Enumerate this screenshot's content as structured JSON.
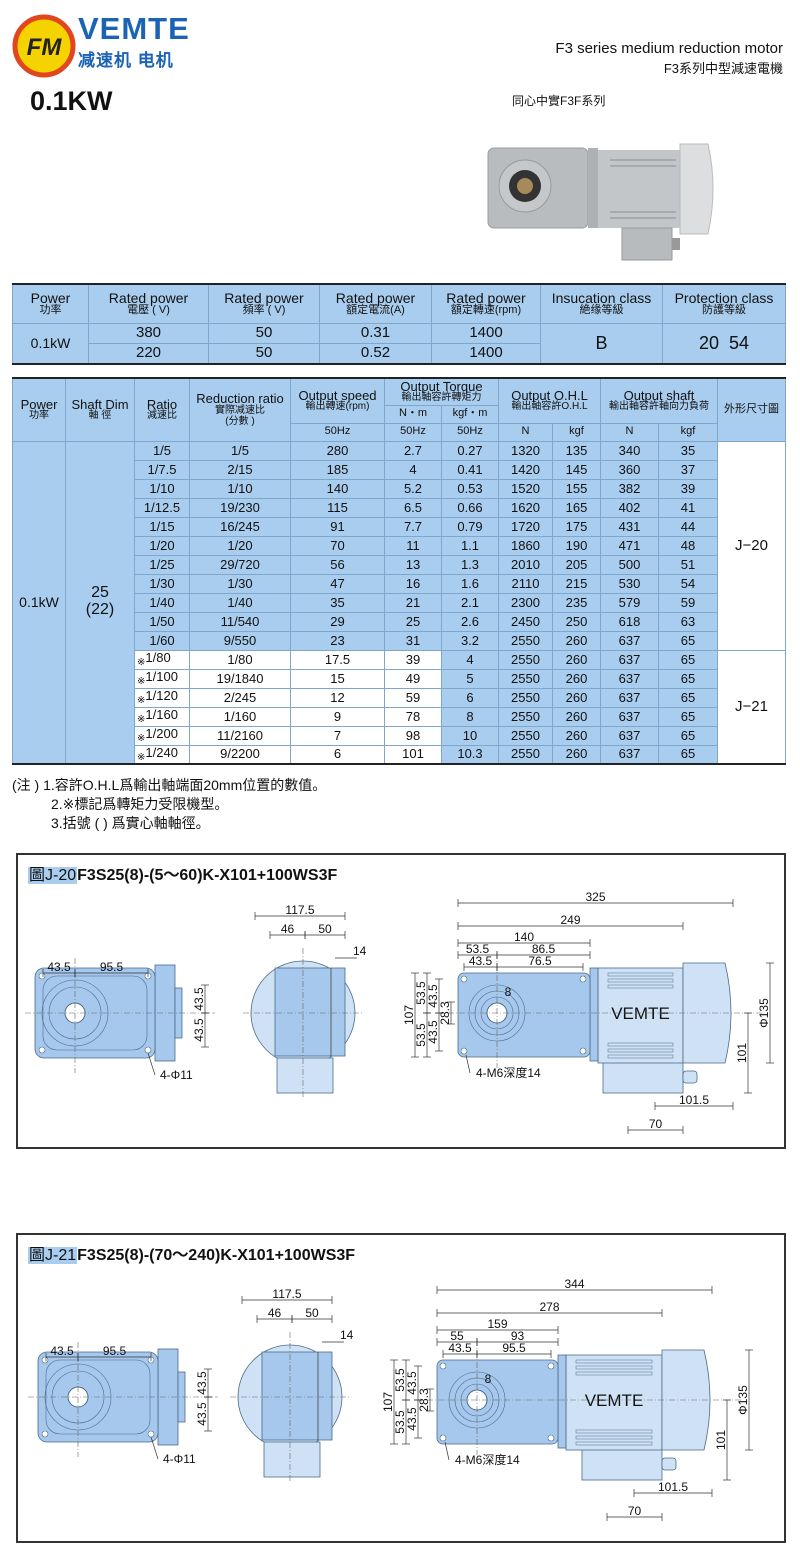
{
  "brand": {
    "name": "VEMTE",
    "subtitle": "减速机 电机",
    "logo_mark": "FM"
  },
  "header": {
    "title_en": "F3 series medium reduction motor",
    "title_cn": "F3系列中型減速電機",
    "series": "同心中實F3F系列",
    "power": "0.1KW"
  },
  "spec_table": {
    "headers": [
      {
        "en": "Power",
        "cn": "功率"
      },
      {
        "en": "Rated power",
        "cn": "電壓 ( V)"
      },
      {
        "en": "Rated power",
        "cn": "頻率 ( V)"
      },
      {
        "en": "Rated power",
        "cn": "額定電流(A)"
      },
      {
        "en": "Rated power",
        "cn": "額定轉速(rpm)"
      },
      {
        "en": "Insucation class",
        "cn": "絶缘等級"
      },
      {
        "en": "Protection class",
        "cn": "防護等級"
      }
    ],
    "power": "0.1kW",
    "rows": [
      [
        "380",
        "50",
        "0.31",
        "1400"
      ],
      [
        "220",
        "50",
        "0.52",
        "1400"
      ]
    ],
    "insulation": "B",
    "protection": "20  54"
  },
  "perf_table": {
    "headers": {
      "power": {
        "en": "Power",
        "cn": "功率"
      },
      "shaft": {
        "en": "Shaft Dim",
        "cn": "軸 徑"
      },
      "ratio": {
        "en": "Ratio",
        "cn": "減速比"
      },
      "reduction": {
        "en": "Reduction ratio",
        "cn": "實際减速比",
        "cn2": "(分數 )"
      },
      "speed": {
        "en": "Output speed",
        "cn": "輸出轉速(rpm)",
        "unit": "50Hz"
      },
      "torque": {
        "en": "Output Torque",
        "cn": "輸出軸容許轉矩力",
        "u1": "N・m",
        "u2": "kgf・m",
        "f1": "50Hz",
        "f2": "50Hz"
      },
      "ohl": {
        "en": "Output O.H.L",
        "cn": "輸出軸容許O.H.L",
        "u1": "N",
        "u2": "kgf"
      },
      "shaft_load": {
        "en": "Output  shaft",
        "cn": "輸出軸容許軸向力負荷",
        "u1": "N",
        "u2": "kgf"
      },
      "drawing": {
        "cn": "外形尺寸圖"
      }
    },
    "power": "0.1kW",
    "shaft_dim": "25",
    "shaft_dim_solid": "(22)",
    "star_mark": "※",
    "rows": [
      {
        "ratio": "1/5",
        "reduction": "1/5",
        "speed": "280",
        "nm": "2.7",
        "kgfm": "0.27",
        "ohl_n": "1320",
        "ohl_kgf": "135",
        "ax_n": "340",
        "ax_kgf": "35",
        "limited": false
      },
      {
        "ratio": "1/7.5",
        "reduction": "2/15",
        "speed": "185",
        "nm": "4",
        "kgfm": "0.41",
        "ohl_n": "1420",
        "ohl_kgf": "145",
        "ax_n": "360",
        "ax_kgf": "37",
        "limited": false
      },
      {
        "ratio": "1/10",
        "reduction": "1/10",
        "speed": "140",
        "nm": "5.2",
        "kgfm": "0.53",
        "ohl_n": "1520",
        "ohl_kgf": "155",
        "ax_n": "382",
        "ax_kgf": "39",
        "limited": false
      },
      {
        "ratio": "1/12.5",
        "reduction": "19/230",
        "speed": "115",
        "nm": "6.5",
        "kgfm": "0.66",
        "ohl_n": "1620",
        "ohl_kgf": "165",
        "ax_n": "402",
        "ax_kgf": "41",
        "limited": false
      },
      {
        "ratio": "1/15",
        "reduction": "16/245",
        "speed": "91",
        "nm": "7.7",
        "kgfm": "0.79",
        "ohl_n": "1720",
        "ohl_kgf": "175",
        "ax_n": "431",
        "ax_kgf": "44",
        "limited": false
      },
      {
        "ratio": "1/20",
        "reduction": "1/20",
        "speed": "70",
        "nm": "11",
        "kgfm": "1.1",
        "ohl_n": "1860",
        "ohl_kgf": "190",
        "ax_n": "471",
        "ax_kgf": "48",
        "limited": false
      },
      {
        "ratio": "1/25",
        "reduction": "29/720",
        "speed": "56",
        "nm": "13",
        "kgfm": "1.3",
        "ohl_n": "2010",
        "ohl_kgf": "205",
        "ax_n": "500",
        "ax_kgf": "51",
        "limited": false
      },
      {
        "ratio": "1/30",
        "reduction": "1/30",
        "speed": "47",
        "nm": "16",
        "kgfm": "1.6",
        "ohl_n": "2110",
        "ohl_kgf": "215",
        "ax_n": "530",
        "ax_kgf": "54",
        "limited": false
      },
      {
        "ratio": "1/40",
        "reduction": "1/40",
        "speed": "35",
        "nm": "21",
        "kgfm": "2.1",
        "ohl_n": "2300",
        "ohl_kgf": "235",
        "ax_n": "579",
        "ax_kgf": "59",
        "limited": false
      },
      {
        "ratio": "1/50",
        "reduction": "11/540",
        "speed": "29",
        "nm": "25",
        "kgfm": "2.6",
        "ohl_n": "2450",
        "ohl_kgf": "250",
        "ax_n": "618",
        "ax_kgf": "63",
        "limited": false
      },
      {
        "ratio": "1/60",
        "reduction": "9/550",
        "speed": "23",
        "nm": "31",
        "kgfm": "3.2",
        "ohl_n": "2550",
        "ohl_kgf": "260",
        "ax_n": "637",
        "ax_kgf": "65",
        "limited": false
      },
      {
        "ratio": "1/80",
        "reduction": "1/80",
        "speed": "17.5",
        "nm": "39",
        "kgfm": "4",
        "ohl_n": "2550",
        "ohl_kgf": "260",
        "ax_n": "637",
        "ax_kgf": "65",
        "limited": true
      },
      {
        "ratio": "1/100",
        "reduction": "19/1840",
        "speed": "15",
        "nm": "49",
        "kgfm": "5",
        "ohl_n": "2550",
        "ohl_kgf": "260",
        "ax_n": "637",
        "ax_kgf": "65",
        "limited": true
      },
      {
        "ratio": "1/120",
        "reduction": "2/245",
        "speed": "12",
        "nm": "59",
        "kgfm": "6",
        "ohl_n": "2550",
        "ohl_kgf": "260",
        "ax_n": "637",
        "ax_kgf": "65",
        "limited": true
      },
      {
        "ratio": "1/160",
        "reduction": "1/160",
        "speed": "9",
        "nm": "78",
        "kgfm": "8",
        "ohl_n": "2550",
        "ohl_kgf": "260",
        "ax_n": "637",
        "ax_kgf": "65",
        "limited": true
      },
      {
        "ratio": "1/200",
        "reduction": "11/2160",
        "speed": "7",
        "nm": "98",
        "kgfm": "10",
        "ohl_n": "2550",
        "ohl_kgf": "260",
        "ax_n": "637",
        "ax_kgf": "65",
        "limited": true
      },
      {
        "ratio": "1/240",
        "reduction": "9/2200",
        "speed": "6",
        "nm": "101",
        "kgfm": "10.3",
        "ohl_n": "2550",
        "ohl_kgf": "260",
        "ax_n": "637",
        "ax_kgf": "65",
        "limited": true
      }
    ],
    "drawing_refs": [
      {
        "label": "J−20",
        "rows": 11
      },
      {
        "label": "J−21",
        "rows": 6
      }
    ]
  },
  "notes": [
    "(注 ) 1.容許O.H.L爲輸出軸端面20mm位置的數值。",
    "2.※標記爲轉矩力受限機型。",
    "3.括號 ( ) 爲實心軸軸徑。"
  ],
  "drawings": [
    {
      "fig": "圖J-20",
      "model": "F3S25(8)-(5～60)K-X101+100WS3F",
      "front": {
        "d1": "43.5",
        "d2": "95.5",
        "v1": "43.5",
        "v2": "43.5",
        "holes": "4-Φ11"
      },
      "side": {
        "w": "117.5",
        "a": "46",
        "b": "50",
        "c": "14"
      },
      "right": {
        "total": "325",
        "l2": "249",
        "l3": "140",
        "l4a": "53.5",
        "l4b": "86.5",
        "l5a": "43.5",
        "l5b": "76.5",
        "h": "107",
        "h1a": "53.5",
        "h1b": "53.5",
        "h2a": "43.5",
        "h2b": "43.5",
        "bore": "28.3",
        "key": "8",
        "taps": "4-M6深度14",
        "brand": "VEMTE",
        "dia": "Φ135",
        "h3": "101",
        "tb1": "101.5",
        "tb2": "70"
      }
    },
    {
      "fig": "圖J-21",
      "model": "F3S25(8)-(70～240)K-X101+100WS3F",
      "front": {
        "d1": "43.5",
        "d2": "95.5",
        "v1": "43.5",
        "v2": "43.5",
        "holes": "4-Φ11"
      },
      "side": {
        "w": "117.5",
        "a": "46",
        "b": "50",
        "c": "14"
      },
      "right": {
        "total": "344",
        "l2": "278",
        "l3": "159",
        "l4a": "55",
        "l4b": "93",
        "l5a": "43.5",
        "l5b": "95.5",
        "h": "107",
        "h1a": "53.5",
        "h1b": "53.5",
        "h2a": "43.5",
        "h2b": "43.5",
        "bore": "28.3",
        "key": "8",
        "taps": "4-M6深度14",
        "brand": "VEMTE",
        "dia": "Φ135",
        "h3": "101",
        "tb1": "101.5",
        "tb2": "70"
      }
    }
  ],
  "colors": {
    "table_blue": "#a9cdee",
    "drawing_blue": "#a6c8ec",
    "brand_blue": "#1a63b5",
    "logo_ring": "#e2461f",
    "logo_fill": "#f5d300"
  }
}
